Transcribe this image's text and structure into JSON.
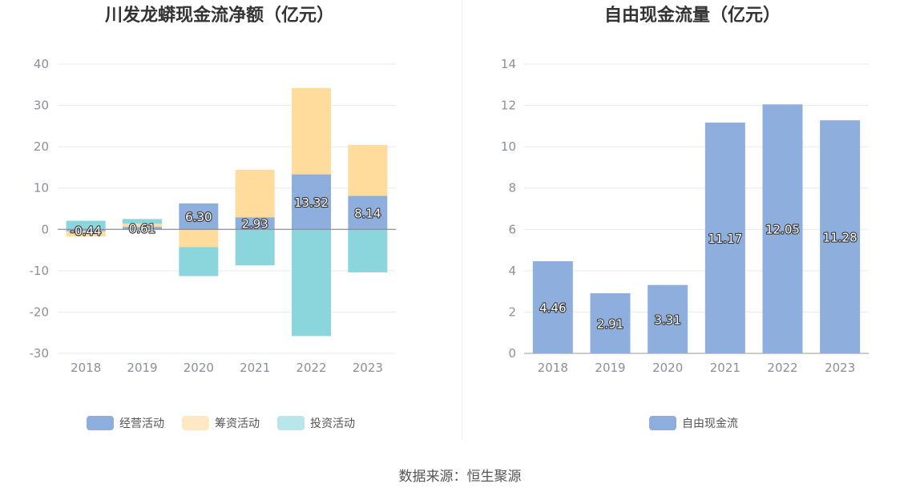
{
  "source_label": "数据来源：恒生聚源",
  "chart_data": [
    {
      "type": "bar",
      "stacked": true,
      "title": "川发龙蟒现金流净额（亿元）",
      "categories": [
        "2018",
        "2019",
        "2020",
        "2021",
        "2022",
        "2023"
      ],
      "ylim": [
        -30,
        40
      ],
      "yticks": [
        40,
        30,
        20,
        10,
        0,
        -10,
        -20,
        -30
      ],
      "grid": true,
      "legend_position": "bottom",
      "series": [
        {
          "name": "经营活动",
          "color": "#8eaedd",
          "values": [
            -0.44,
            0.61,
            6.3,
            2.93,
            13.32,
            8.14
          ],
          "labels": [
            "-0.44",
            "0.61",
            "6.30",
            "2.93",
            "13.32",
            "8.14"
          ]
        },
        {
          "name": "筹资活动",
          "color": "#ffdb9c",
          "values": [
            -1.3,
            0.8,
            -4.3,
            11.5,
            20.9,
            12.3
          ]
        },
        {
          "name": "投资活动",
          "color": "#8ad6dc",
          "values": [
            2.1,
            1.1,
            -7.0,
            -8.7,
            -25.8,
            -10.4
          ]
        }
      ]
    },
    {
      "type": "bar",
      "title": "自由现金流量（亿元）",
      "categories": [
        "2018",
        "2019",
        "2020",
        "2021",
        "2022",
        "2023"
      ],
      "ylim": [
        0,
        14
      ],
      "yticks": [
        14,
        12,
        10,
        8,
        6,
        4,
        2,
        0
      ],
      "grid": true,
      "legend_position": "bottom",
      "series": [
        {
          "name": "自由现金流",
          "color": "#8eaedd",
          "values": [
            4.46,
            2.91,
            3.31,
            11.17,
            12.05,
            11.28
          ],
          "labels": [
            "4.46",
            "2.91",
            "3.31",
            "11.17",
            "12.05",
            "11.28"
          ]
        }
      ]
    }
  ]
}
